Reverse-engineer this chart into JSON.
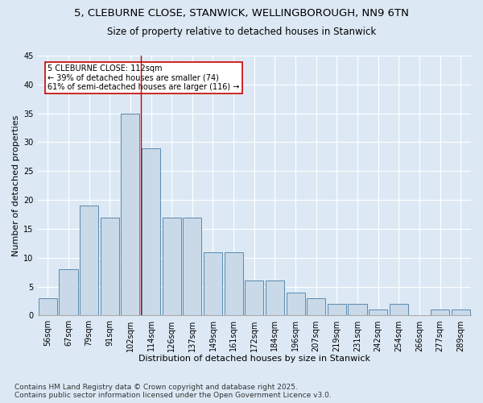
{
  "title1": "5, CLEBURNE CLOSE, STANWICK, WELLINGBOROUGH, NN9 6TN",
  "title2": "Size of property relative to detached houses in Stanwick",
  "xlabel": "Distribution of detached houses by size in Stanwick",
  "ylabel": "Number of detached properties",
  "categories": [
    "56sqm",
    "67sqm",
    "79sqm",
    "91sqm",
    "102sqm",
    "114sqm",
    "126sqm",
    "137sqm",
    "149sqm",
    "161sqm",
    "172sqm",
    "184sqm",
    "196sqm",
    "207sqm",
    "219sqm",
    "231sqm",
    "242sqm",
    "254sqm",
    "266sqm",
    "277sqm",
    "289sqm"
  ],
  "values": [
    3,
    8,
    19,
    17,
    35,
    29,
    17,
    17,
    11,
    11,
    6,
    6,
    4,
    3,
    2,
    2,
    1,
    2,
    0,
    1,
    1
  ],
  "bar_color": "#c9d9e8",
  "bar_edge_color": "#5a8ab0",
  "background_color": "#dce9f5",
  "grid_color": "#ffffff",
  "red_line_x": 4.5,
  "annotation_line1": "5 CLEBURNE CLOSE: 112sqm",
  "annotation_line2": "← 39% of detached houses are smaller (74)",
  "annotation_line3": "61% of semi-detached houses are larger (116) →",
  "annotation_box_color": "#ffffff",
  "annotation_box_edge": "#cc0000",
  "annotation_text_color": "#000000",
  "red_line_color": "#cc0000",
  "ylim": [
    0,
    45
  ],
  "yticks": [
    0,
    5,
    10,
    15,
    20,
    25,
    30,
    35,
    40,
    45
  ],
  "footer": "Contains HM Land Registry data © Crown copyright and database right 2025.\nContains public sector information licensed under the Open Government Licence v3.0.",
  "title1_fontsize": 9.5,
  "title2_fontsize": 8.5,
  "xlabel_fontsize": 8,
  "ylabel_fontsize": 8,
  "tick_fontsize": 7,
  "annotation_fontsize": 7,
  "footer_fontsize": 6.5
}
